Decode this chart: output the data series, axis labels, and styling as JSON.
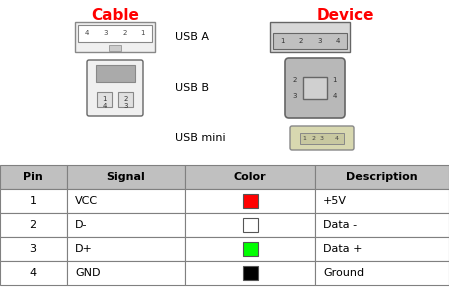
{
  "title_cable": "Cable",
  "title_device": "Device",
  "title_color": "#ff0000",
  "usb_labels": [
    "USB A",
    "USB B",
    "USB mini"
  ],
  "table_headers": [
    "Pin",
    "Signal",
    "Color",
    "Description"
  ],
  "table_rows": [
    [
      "1",
      "VCC",
      "#ff0000",
      "+5V"
    ],
    [
      "2",
      "D-",
      "#ffffff",
      "Data -"
    ],
    [
      "3",
      "D+",
      "#00ff00",
      "Data +"
    ],
    [
      "4",
      "GND",
      "#000000",
      "Ground"
    ]
  ],
  "header_bg": "#c0c0c0",
  "row_bg": "#ffffff",
  "table_border": "#808080",
  "fig_bg": "#ffffff",
  "font_size_title": 11,
  "font_size_label": 8,
  "font_size_table": 8
}
